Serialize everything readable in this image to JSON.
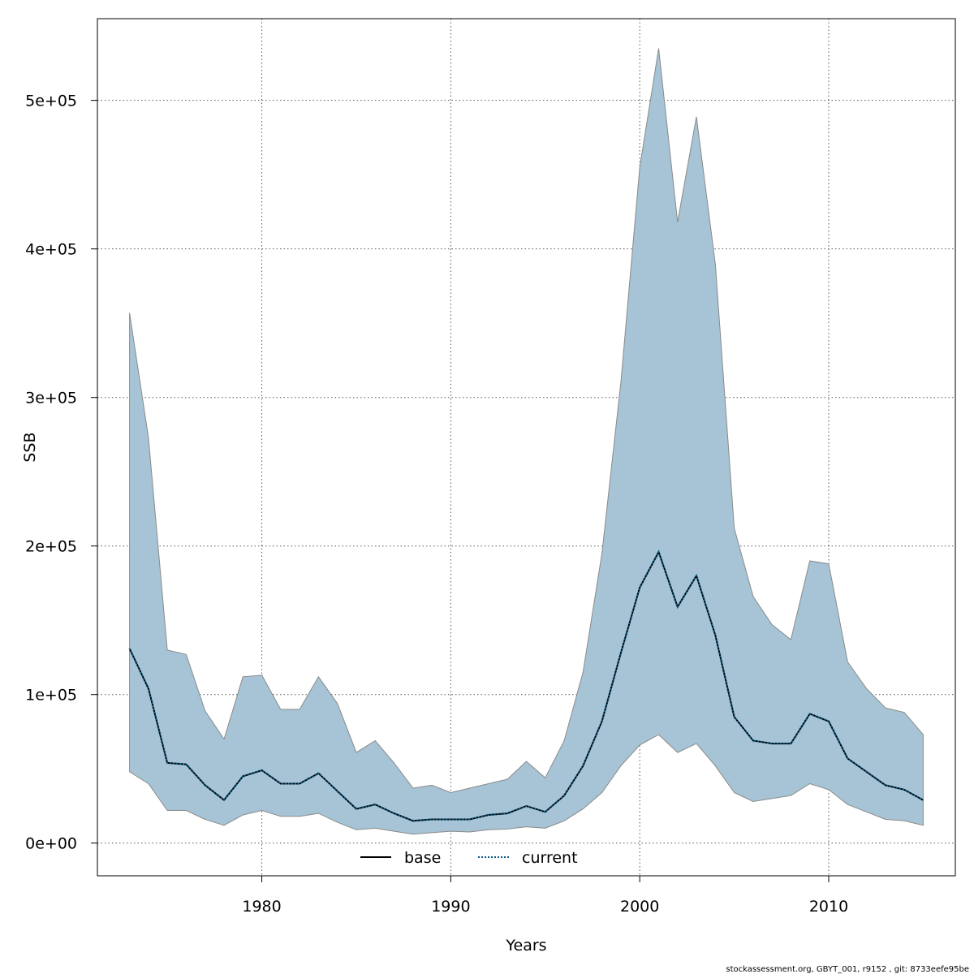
{
  "chart_data": {
    "type": "area",
    "title": "",
    "xlabel": "Years",
    "ylabel": "SSB",
    "xlim": [
      1971.3,
      1976.7
    ],
    "ylim": [
      -22000,
      555000
    ],
    "x_ticks": [
      1980,
      1990,
      2000,
      2010
    ],
    "x_tick_labels": [
      "1980",
      "1990",
      "2000",
      "2010"
    ],
    "y_ticks": [
      0,
      100000,
      200000,
      300000,
      400000,
      500000
    ],
    "y_tick_labels": [
      "0e+00",
      "1e+05",
      "2e+05",
      "3e+05",
      "4e+05",
      "5e+05"
    ],
    "grid": true,
    "legend_position": "bottom",
    "x": [
      1973,
      1974,
      1975,
      1976,
      1977,
      1978,
      1979,
      1980,
      1981,
      1982,
      1983,
      1984,
      1985,
      1986,
      1987,
      1988,
      1989,
      1990,
      1991,
      1992,
      1993,
      1994,
      1995,
      1996,
      1997,
      1998,
      1999,
      2000,
      2001,
      2002,
      2003,
      2004,
      2005,
      2006,
      2007,
      2008,
      2009,
      2010,
      2011,
      2012,
      2013,
      2014,
      2015
    ],
    "band": {
      "upper": [
        357000,
        273000,
        130000,
        127000,
        89000,
        70000,
        112000,
        113000,
        90000,
        90000,
        112000,
        94000,
        61000,
        69000,
        54000,
        37000,
        39000,
        34000,
        37000,
        40000,
        43000,
        55000,
        44000,
        69000,
        115000,
        195000,
        310000,
        455000,
        535000,
        418000,
        489000,
        390000,
        212000,
        166000,
        147000,
        137000,
        190000,
        188000,
        122000,
        104000,
        91000,
        88000,
        73000
      ],
      "lower": [
        48000,
        40000,
        22000,
        22000,
        16000,
        12000,
        19000,
        22000,
        18000,
        18000,
        20000,
        14000,
        9000,
        10000,
        8000,
        6000,
        7000,
        8000,
        7500,
        9000,
        9500,
        11000,
        10000,
        15000,
        23000,
        34000,
        52000,
        66000,
        73000,
        61000,
        67000,
        52000,
        34000,
        28000,
        30000,
        32000,
        40000,
        36000,
        26000,
        21000,
        16000,
        15000,
        12000
      ]
    },
    "series": [
      {
        "name": "base",
        "style": "solid",
        "color": "#000000",
        "values": [
          131000,
          104000,
          54000,
          53000,
          39000,
          29000,
          45000,
          49000,
          40000,
          40000,
          47000,
          35000,
          23000,
          26000,
          20000,
          15000,
          16000,
          16000,
          16000,
          19000,
          20000,
          25000,
          21000,
          32000,
          52000,
          82000,
          128000,
          172000,
          196000,
          159000,
          180000,
          140000,
          85000,
          69000,
          67000,
          67000,
          87000,
          82000,
          57000,
          48000,
          39000,
          36000,
          29000
        ]
      },
      {
        "name": "current",
        "style": "dotted",
        "color": "#0b5a86",
        "values": [
          131000,
          104000,
          54000,
          53000,
          39000,
          29000,
          45000,
          49000,
          40000,
          40000,
          47000,
          35000,
          23000,
          26000,
          20000,
          15000,
          16000,
          16000,
          16000,
          19000,
          20000,
          25000,
          21000,
          32000,
          52000,
          82000,
          128000,
          172000,
          196000,
          159000,
          180000,
          140000,
          85000,
          69000,
          67000,
          67000,
          87000,
          82000,
          57000,
          48000,
          39000,
          36000,
          29000
        ]
      }
    ],
    "colors": {
      "band_fill": "#a6c4d5",
      "band_stroke": "#8a8a8a",
      "grid": "#555555"
    }
  },
  "footer": "stockassessment.org, GBYT_001, r9152 , git: 8733eefe95be"
}
